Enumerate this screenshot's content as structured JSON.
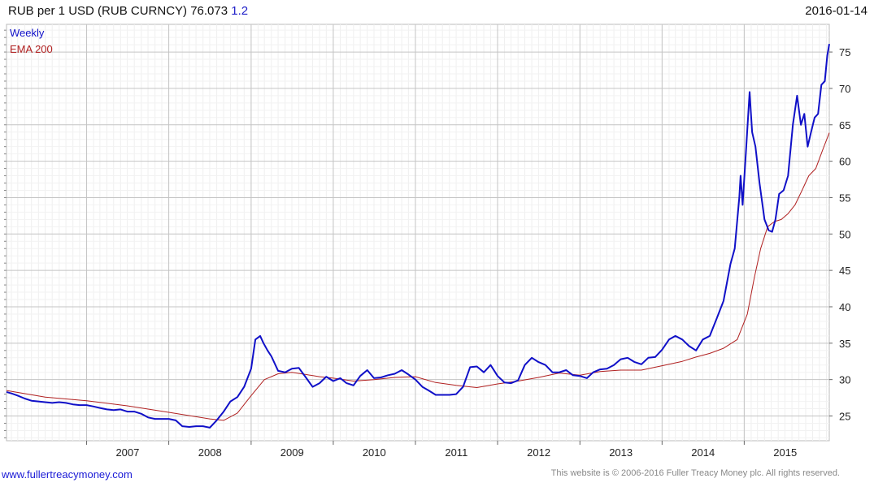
{
  "header": {
    "title": "RUB per 1 USD (RUB CURNCY) 76.073",
    "change": "1.2",
    "date": "2016-01-14"
  },
  "footer": {
    "link": "www.fullertreacymoney.com",
    "copyright": "This website is © 2006-2016 Fuller Treacy Money plc. All rights reserved."
  },
  "chart_data": {
    "type": "line",
    "title": "RUB per 1 USD (RUB CURNCY) 76.073",
    "xlabel": "",
    "ylabel": "",
    "x_ticks": [
      "2007",
      "2008",
      "2009",
      "2010",
      "2011",
      "2012",
      "2013",
      "2014",
      "2015"
    ],
    "y_ticks": [
      25,
      30,
      35,
      40,
      45,
      50,
      55,
      60,
      65,
      70,
      75
    ],
    "xlim": [
      "2006-01-10",
      "2016-01-14"
    ],
    "ylim": [
      21.6,
      78.8
    ],
    "grid": true,
    "legend_position": "top-left",
    "colors": {
      "weekly": "#1010c8",
      "ema": "#b02020"
    },
    "series": [
      {
        "name": "Weekly",
        "x": [
          "2006-01-10",
          "2006-02-01",
          "2006-03-01",
          "2006-04-01",
          "2006-05-01",
          "2006-06-01",
          "2006-07-01",
          "2006-08-01",
          "2006-09-01",
          "2006-10-01",
          "2006-11-01",
          "2006-12-01",
          "2007-01-01",
          "2007-02-01",
          "2007-03-01",
          "2007-04-01",
          "2007-05-01",
          "2007-06-01",
          "2007-07-01",
          "2007-08-01",
          "2007-09-01",
          "2007-10-01",
          "2007-11-01",
          "2007-12-01",
          "2008-01-01",
          "2008-02-01",
          "2008-03-01",
          "2008-04-01",
          "2008-05-01",
          "2008-06-01",
          "2008-07-01",
          "2008-08-01",
          "2008-09-01",
          "2008-10-01",
          "2008-11-01",
          "2008-12-01",
          "2009-01-01",
          "2009-01-20",
          "2009-02-10",
          "2009-02-25",
          "2009-03-15",
          "2009-04-01",
          "2009-05-01",
          "2009-06-01",
          "2009-07-01",
          "2009-08-01",
          "2009-09-01",
          "2009-10-01",
          "2009-11-01",
          "2009-12-01",
          "2010-01-01",
          "2010-02-01",
          "2010-03-01",
          "2010-04-01",
          "2010-05-01",
          "2010-06-01",
          "2010-07-01",
          "2010-08-01",
          "2010-09-01",
          "2010-10-01",
          "2010-11-01",
          "2010-12-01",
          "2011-01-01",
          "2011-02-01",
          "2011-03-01",
          "2011-04-01",
          "2011-05-01",
          "2011-06-01",
          "2011-07-01",
          "2011-08-01",
          "2011-09-01",
          "2011-10-01",
          "2011-11-01",
          "2011-12-01",
          "2012-01-01",
          "2012-02-01",
          "2012-03-01",
          "2012-04-01",
          "2012-05-01",
          "2012-06-01",
          "2012-07-01",
          "2012-08-01",
          "2012-09-01",
          "2012-10-01",
          "2012-11-01",
          "2012-12-01",
          "2013-01-01",
          "2013-02-01",
          "2013-03-01",
          "2013-04-01",
          "2013-05-01",
          "2013-06-01",
          "2013-07-01",
          "2013-08-01",
          "2013-09-01",
          "2013-10-01",
          "2013-11-01",
          "2013-12-01",
          "2014-01-01",
          "2014-02-01",
          "2014-03-01",
          "2014-04-01",
          "2014-05-01",
          "2014-06-01",
          "2014-07-01",
          "2014-08-01",
          "2014-09-01",
          "2014-10-01",
          "2014-11-01",
          "2014-11-20",
          "2014-12-10",
          "2014-12-16",
          "2014-12-25",
          "2015-01-10",
          "2015-01-25",
          "2015-02-05",
          "2015-02-20",
          "2015-03-10",
          "2015-04-01",
          "2015-04-20",
          "2015-05-05",
          "2015-05-20",
          "2015-06-05",
          "2015-06-25",
          "2015-07-15",
          "2015-08-05",
          "2015-08-24",
          "2015-09-10",
          "2015-09-25",
          "2015-10-10",
          "2015-10-25",
          "2015-11-10",
          "2015-11-25",
          "2015-12-10",
          "2015-12-25",
          "2016-01-05",
          "2016-01-14"
        ],
        "y": [
          28.3,
          28.1,
          27.8,
          27.4,
          27.1,
          27.0,
          26.9,
          26.8,
          26.9,
          26.8,
          26.6,
          26.5,
          26.5,
          26.3,
          26.1,
          25.9,
          25.8,
          25.9,
          25.6,
          25.6,
          25.3,
          24.8,
          24.6,
          24.6,
          24.6,
          24.4,
          23.6,
          23.5,
          23.6,
          23.6,
          23.4,
          24.4,
          25.6,
          27.0,
          27.6,
          29.0,
          31.5,
          35.5,
          36.0,
          35.0,
          34.0,
          33.2,
          31.2,
          31.0,
          31.5,
          31.6,
          30.3,
          29.0,
          29.5,
          30.4,
          29.8,
          30.2,
          29.5,
          29.2,
          30.5,
          31.3,
          30.2,
          30.3,
          30.6,
          30.8,
          31.3,
          30.7,
          30.0,
          29.0,
          28.5,
          27.9,
          27.9,
          27.9,
          28.0,
          29.0,
          31.7,
          31.8,
          31.0,
          32.0,
          30.5,
          29.6,
          29.5,
          29.9,
          32.0,
          33.0,
          32.4,
          32.0,
          31.0,
          31.0,
          31.3,
          30.6,
          30.5,
          30.2,
          31.0,
          31.4,
          31.5,
          32.0,
          32.8,
          33.0,
          32.4,
          32.1,
          33.0,
          33.1,
          34.1,
          35.5,
          36.0,
          35.5,
          34.6,
          34.0,
          35.5,
          36.0,
          38.4,
          40.8,
          45.9,
          48.0,
          55.0,
          58.0,
          54.0,
          62.0,
          69.5,
          64.0,
          62.0,
          57.0,
          52.0,
          50.5,
          50.3,
          52.0,
          55.5,
          56.0,
          58.0,
          65.0,
          69.0,
          65.0,
          66.5,
          62.0,
          64.0,
          66.0,
          66.5,
          70.5,
          71.0,
          74.5,
          76.1
        ]
      },
      {
        "name": "EMA 200",
        "x": [
          "2006-01-10",
          "2006-07-01",
          "2007-01-01",
          "2007-07-01",
          "2008-01-01",
          "2008-07-01",
          "2008-09-01",
          "2008-11-01",
          "2009-01-01",
          "2009-03-01",
          "2009-05-01",
          "2009-07-01",
          "2009-09-01",
          "2009-11-01",
          "2010-01-01",
          "2010-04-01",
          "2010-07-01",
          "2010-10-01",
          "2011-01-01",
          "2011-04-01",
          "2011-07-01",
          "2011-10-01",
          "2012-01-01",
          "2012-04-01",
          "2012-07-01",
          "2012-10-01",
          "2013-01-01",
          "2013-04-01",
          "2013-07-01",
          "2013-10-01",
          "2014-01-01",
          "2014-04-01",
          "2014-06-01",
          "2014-08-01",
          "2014-10-01",
          "2014-12-01",
          "2015-01-15",
          "2015-02-15",
          "2015-03-15",
          "2015-04-15",
          "2015-05-15",
          "2015-06-15",
          "2015-07-15",
          "2015-08-15",
          "2015-09-15",
          "2015-10-15",
          "2015-11-15",
          "2015-12-15",
          "2016-01-14"
        ],
        "y": [
          28.5,
          27.6,
          27.1,
          26.4,
          25.5,
          24.6,
          24.4,
          25.4,
          27.8,
          30.0,
          30.8,
          31.0,
          30.7,
          30.4,
          30.2,
          29.8,
          30.0,
          30.3,
          30.4,
          29.6,
          29.2,
          28.9,
          29.4,
          29.8,
          30.3,
          30.9,
          30.6,
          31.1,
          31.3,
          31.3,
          31.9,
          32.5,
          33.1,
          33.6,
          34.3,
          35.5,
          39.0,
          44.0,
          48.0,
          51.0,
          51.7,
          52.0,
          52.8,
          54.0,
          56.0,
          58.0,
          59.0,
          61.5,
          63.9
        ]
      }
    ]
  }
}
